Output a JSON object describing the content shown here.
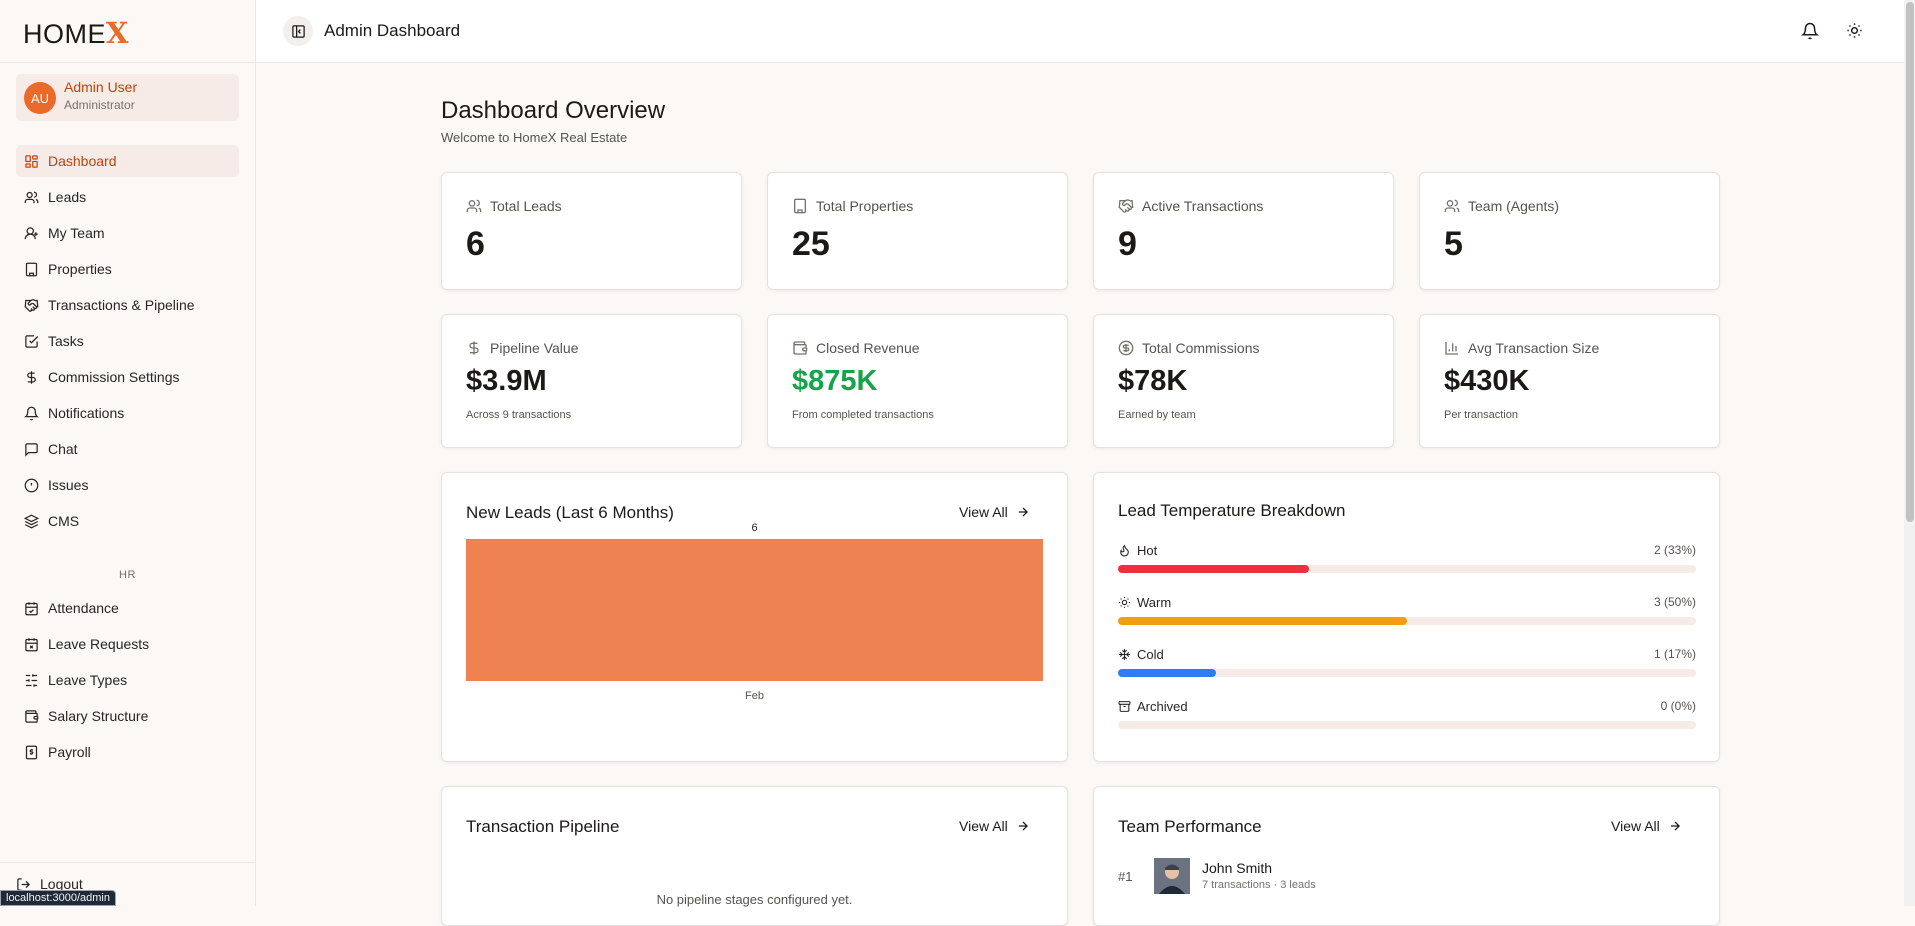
{
  "brand": {
    "name_main": "HOME",
    "name_accent": "X"
  },
  "user": {
    "initials": "AU",
    "name": "Admin User",
    "role": "Administrator"
  },
  "nav": [
    {
      "label": "Dashboard",
      "icon": "dashboard-icon",
      "active": true
    },
    {
      "label": "Leads",
      "icon": "users-icon"
    },
    {
      "label": "My Team",
      "icon": "user-icon"
    },
    {
      "label": "Properties",
      "icon": "building-icon"
    },
    {
      "label": "Transactions & Pipeline",
      "icon": "handshake-icon"
    },
    {
      "label": "Tasks",
      "icon": "checkbox-icon"
    },
    {
      "label": "Commission Settings",
      "icon": "dollar-icon"
    },
    {
      "label": "Notifications",
      "icon": "bell-icon"
    },
    {
      "label": "Chat",
      "icon": "chat-icon"
    },
    {
      "label": "Issues",
      "icon": "alert-icon"
    },
    {
      "label": "CMS",
      "icon": "layers-icon"
    }
  ],
  "hr_section": "HR",
  "hr_nav": [
    {
      "label": "Attendance",
      "icon": "calendar-icon"
    },
    {
      "label": "Leave Requests",
      "icon": "calendar-x-icon"
    },
    {
      "label": "Leave Types",
      "icon": "sliders-icon"
    },
    {
      "label": "Salary Structure",
      "icon": "wallet-icon"
    },
    {
      "label": "Payroll",
      "icon": "receipt-icon"
    }
  ],
  "logout": "Logout",
  "status_url": "localhost:3000/admin",
  "header": {
    "title": "Admin Dashboard"
  },
  "page": {
    "title": "Dashboard Overview",
    "subtitle": "Welcome to HomeX Real Estate"
  },
  "stats_top": [
    {
      "label": "Total Leads",
      "value": "6",
      "icon": "users-icon"
    },
    {
      "label": "Total Properties",
      "value": "25",
      "icon": "building-icon"
    },
    {
      "label": "Active Transactions",
      "value": "9",
      "icon": "handshake-icon"
    },
    {
      "label": "Team (Agents)",
      "value": "5",
      "icon": "team-icon"
    }
  ],
  "stats_bottom": [
    {
      "label": "Pipeline Value",
      "value": "$3.9M",
      "sub": "Across 9 transactions",
      "icon": "dollar-icon"
    },
    {
      "label": "Closed Revenue",
      "value": "$875K",
      "sub": "From completed transactions",
      "icon": "wallet-icon"
    },
    {
      "label": "Total Commissions",
      "value": "$78K",
      "sub": "Earned by team",
      "icon": "coin-icon"
    },
    {
      "label": "Avg Transaction Size",
      "value": "$430K",
      "sub": "Per transaction",
      "icon": "bar-chart-icon"
    }
  ],
  "leads_chart": {
    "title": "New Leads (Last 6 Months)",
    "view_all": "View All"
  },
  "chart_data": {
    "type": "bar",
    "categories": [
      "Feb"
    ],
    "values": [
      6
    ],
    "title": "New Leads (Last 6 Months)",
    "xlabel": "",
    "ylabel": "",
    "data_labels": [
      "6"
    ],
    "color": "#ef8251"
  },
  "temperature": {
    "title": "Lead Temperature Breakdown",
    "rows": [
      {
        "label": "Hot",
        "count": "2 (33%)",
        "fraction": 0.33,
        "color": "#ef2f41",
        "icon": "flame-icon"
      },
      {
        "label": "Warm",
        "count": "3 (50%)",
        "fraction": 0.5,
        "color": "#f59e0b",
        "icon": "sun-icon"
      },
      {
        "label": "Cold",
        "count": "1 (17%)",
        "fraction": 0.17,
        "color": "#2f7df6",
        "icon": "snowflake-icon"
      },
      {
        "label": "Archived",
        "count": "0 (0%)",
        "fraction": 0,
        "color": "#a8a29e",
        "icon": "archive-icon"
      }
    ]
  },
  "pipeline": {
    "title": "Transaction Pipeline",
    "view_all": "View All",
    "empty": "No pipeline stages configured yet."
  },
  "team": {
    "title": "Team Performance",
    "view_all": "View All",
    "members": [
      {
        "rank": "#1",
        "name": "John Smith",
        "meta": "7 transactions · 3 leads"
      }
    ]
  }
}
